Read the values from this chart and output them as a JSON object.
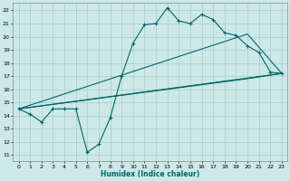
{
  "xlabel": "Humidex (Indice chaleur)",
  "bg_color": "#cce8e8",
  "grid_color": "#aacccc",
  "line_color": "#006666",
  "xlim": [
    -0.5,
    23.5
  ],
  "ylim": [
    10.5,
    22.6
  ],
  "yticks": [
    11,
    12,
    13,
    14,
    15,
    16,
    17,
    18,
    19,
    20,
    21,
    22
  ],
  "xticks": [
    0,
    1,
    2,
    3,
    4,
    5,
    6,
    7,
    8,
    9,
    10,
    11,
    12,
    13,
    14,
    15,
    16,
    17,
    18,
    19,
    20,
    21,
    22,
    23
  ],
  "line1_x": [
    0,
    1,
    2,
    3,
    4,
    5,
    6,
    7,
    8,
    9,
    10,
    11,
    12,
    13,
    14,
    15,
    16,
    17,
    18,
    19,
    20,
    21,
    22,
    23
  ],
  "line1_y": [
    14.5,
    14.1,
    13.5,
    14.5,
    14.5,
    14.5,
    11.2,
    11.8,
    13.8,
    17.0,
    19.5,
    20.9,
    21.0,
    22.2,
    21.2,
    21.0,
    21.7,
    21.3,
    20.3,
    20.1,
    19.3,
    18.8,
    17.3,
    17.2
  ],
  "line2_x": [
    0,
    23
  ],
  "line2_y": [
    14.5,
    17.2
  ],
  "line3_x": [
    0,
    20,
    23
  ],
  "line3_y": [
    14.5,
    20.2,
    17.2
  ],
  "line4_x": [
    0,
    20,
    23
  ],
  "line4_y": [
    14.5,
    16.8,
    17.2
  ]
}
